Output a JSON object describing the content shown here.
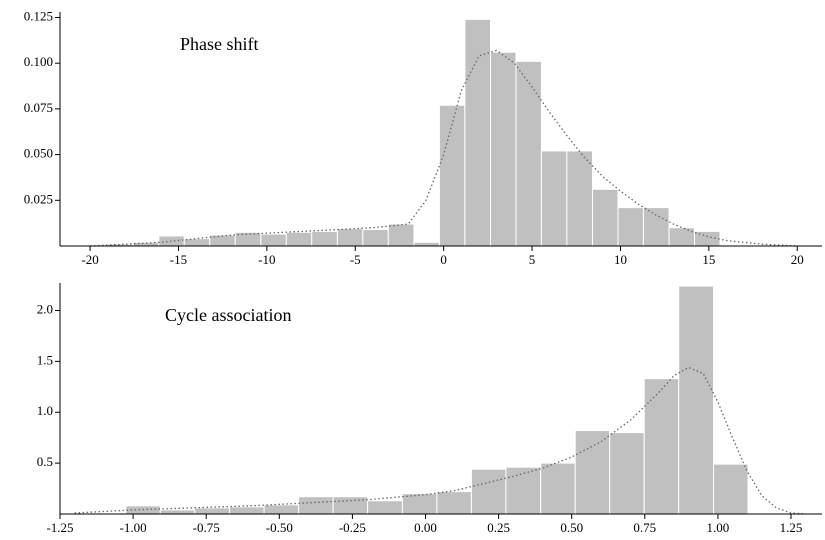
{
  "chart_data": [
    {
      "type": "histogram",
      "title": "Phase shift",
      "color": "#c0c0c0",
      "edgecolor": "#ffffff",
      "bins": [
        -19.0,
        -17.56,
        -16.11,
        -14.67,
        -13.23,
        -11.79,
        -10.34,
        -8.9,
        -7.46,
        -6.01,
        -4.57,
        -3.13,
        -1.68,
        -0.24,
        1.2,
        2.65,
        4.09,
        5.53,
        6.97,
        8.42,
        9.86,
        11.3,
        12.75,
        14.19,
        15.63
      ],
      "counts": [
        0.001,
        0.002,
        0.0055,
        0.004,
        0.006,
        0.0075,
        0.0065,
        0.0075,
        0.008,
        0.0095,
        0.009,
        0.012,
        0.002,
        0.077,
        0.124,
        0.106,
        0.101,
        0.052,
        0.052,
        0.031,
        0.021,
        0.021,
        0.01,
        0.008
      ],
      "density": {
        "color": "#666666",
        "x": [
          -20,
          -18,
          -16,
          -14,
          -12,
          -10,
          -8,
          -6,
          -4,
          -2,
          -1,
          0,
          1,
          2,
          3,
          4,
          5,
          6,
          7,
          8,
          9,
          10,
          11,
          12,
          13,
          14,
          15,
          16,
          18,
          20
        ],
        "values": [
          0.0,
          0.001,
          0.002,
          0.004,
          0.006,
          0.007,
          0.008,
          0.009,
          0.01,
          0.012,
          0.025,
          0.05,
          0.085,
          0.104,
          0.107,
          0.1,
          0.087,
          0.073,
          0.06,
          0.048,
          0.038,
          0.03,
          0.023,
          0.017,
          0.012,
          0.008,
          0.005,
          0.003,
          0.001,
          0.0
        ]
      },
      "xlim": [
        -21.7,
        21.4
      ],
      "ylim": [
        0,
        0.128
      ],
      "xticks": [
        -20,
        -15,
        -10,
        -5,
        0,
        5,
        10,
        15,
        20
      ],
      "yticks": [
        {
          "value": 0.025,
          "label": "0.025"
        },
        {
          "value": 0.05,
          "label": "0.050"
        },
        {
          "value": 0.075,
          "label": "0.075"
        },
        {
          "value": 0.1,
          "label": "0.100"
        },
        0.125
      ]
    },
    {
      "type": "histogram",
      "title": "Cycle association",
      "color": "#c0c0c0",
      "edgecolor": "#ffffff",
      "bins": [
        -1.025,
        -0.907,
        -0.789,
        -0.67,
        -0.552,
        -0.434,
        -0.316,
        -0.198,
        -0.079,
        0.039,
        0.157,
        0.275,
        0.394,
        0.512,
        0.63,
        0.748,
        0.866,
        0.985,
        1.103
      ],
      "counts": [
        0.08,
        0.04,
        0.06,
        0.07,
        0.09,
        0.17,
        0.17,
        0.13,
        0.2,
        0.22,
        0.44,
        0.46,
        0.5,
        0.82,
        0.8,
        1.33,
        2.24,
        0.49
      ],
      "density": {
        "color": "#666666",
        "x": [
          -1.2,
          -1.0,
          -0.8,
          -0.6,
          -0.4,
          -0.2,
          0,
          0.1,
          0.2,
          0.3,
          0.4,
          0.5,
          0.6,
          0.7,
          0.8,
          0.85,
          0.9,
          0.95,
          1.0,
          1.05,
          1.1,
          1.15,
          1.2,
          1.25,
          1.3
        ],
        "values": [
          0.01,
          0.04,
          0.06,
          0.08,
          0.11,
          0.14,
          0.19,
          0.23,
          0.3,
          0.37,
          0.45,
          0.56,
          0.71,
          0.92,
          1.2,
          1.36,
          1.44,
          1.38,
          1.1,
          0.75,
          0.42,
          0.18,
          0.06,
          0.01,
          0.0
        ]
      },
      "xlim": [
        -1.25,
        1.356
      ],
      "ylim": [
        0,
        2.27
      ],
      "xticks": [
        -1.25,
        {
          "value": -1,
          "label": "-1.00"
        },
        -0.75,
        {
          "value": -0.5,
          "label": "-0.50"
        },
        -0.25,
        {
          "value": 0,
          "label": "0.00"
        },
        0.25,
        {
          "value": 0.5,
          "label": "0.50"
        },
        0.75,
        {
          "value": 1,
          "label": "1.00"
        },
        1.25
      ],
      "yticks": [
        0.5,
        {
          "value": 1,
          "label": "1.0"
        },
        1.5,
        {
          "value": 2,
          "label": "2.0"
        }
      ]
    }
  ]
}
